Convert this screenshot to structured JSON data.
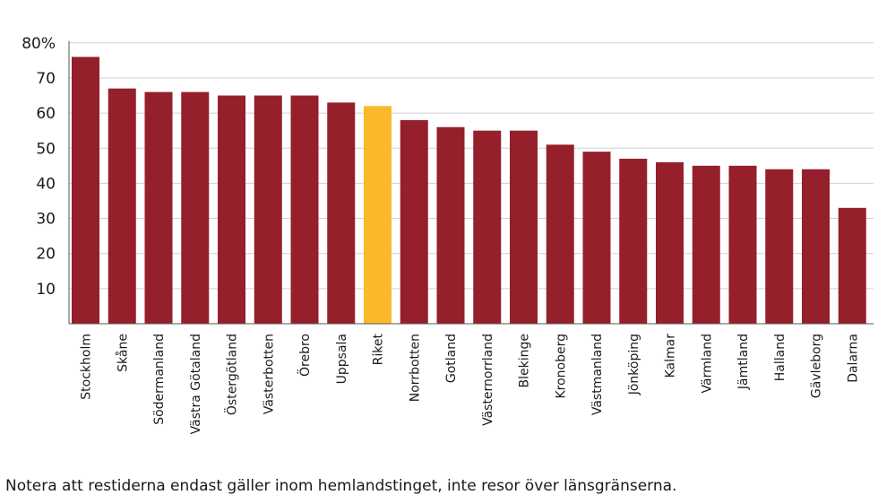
{
  "chart_data": {
    "type": "bar",
    "title": "",
    "xlabel": "",
    "ylabel": "",
    "ylim": [
      0,
      80
    ],
    "yticks": [
      10,
      20,
      30,
      40,
      50,
      60,
      70,
      80
    ],
    "ytick_labels": [
      "10",
      "20",
      "30",
      "40",
      "50",
      "60",
      "70",
      "80%"
    ],
    "grid": true,
    "categories": [
      "Stockholm",
      "Skåne",
      "Södermanland",
      "Västra Götaland",
      "Östergötland",
      "Västerbotten",
      "Örebro",
      "Uppsala",
      "Riket",
      "Norrbotten",
      "Gotland",
      "Västernorrland",
      "Blekinge",
      "Kronoberg",
      "Västmanland",
      "Jönköping",
      "Kalmar",
      "Värmland",
      "Jämtland",
      "Halland",
      "Gävleborg",
      "Dalarna"
    ],
    "values": [
      76,
      67,
      66,
      66,
      65,
      65,
      65,
      63,
      62,
      58,
      56,
      55,
      55,
      51,
      49,
      47,
      46,
      45,
      45,
      44,
      44,
      33
    ],
    "highlight_category": "Riket",
    "colors": {
      "bar": "#951f2a",
      "highlight": "#fbb829",
      "grid": "#d0d0d0",
      "axis": "#555555"
    }
  },
  "footnote": "Notera att restiderna endast gäller inom hemlandstinget, inte resor över länsgränserna."
}
